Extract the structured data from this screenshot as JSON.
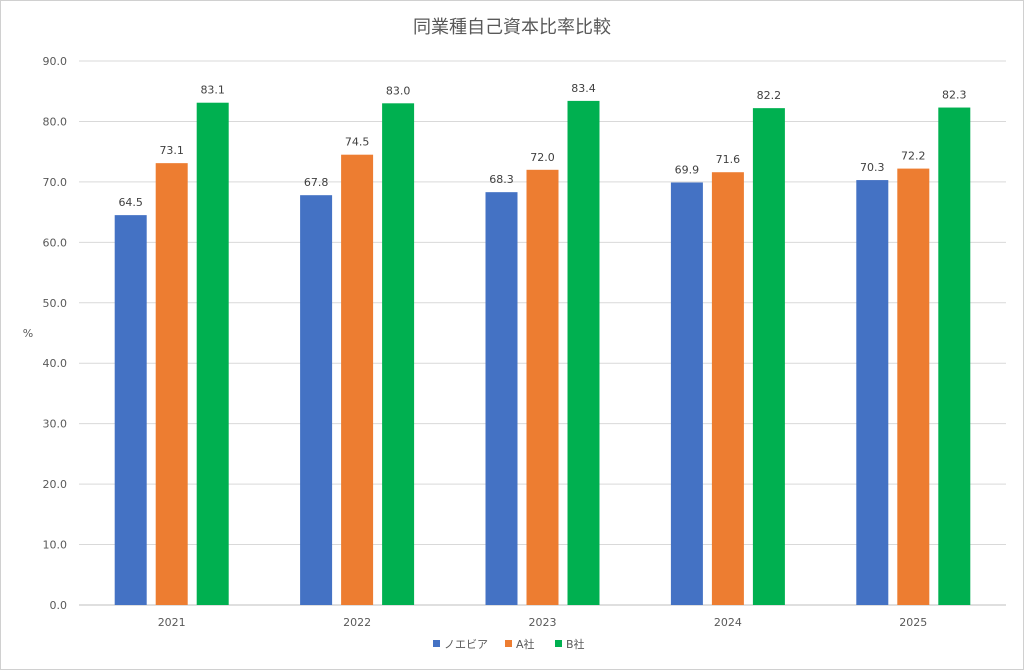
{
  "chart_data": {
    "type": "bar",
    "title": "同業種自己資本比率比較",
    "xlabel": "",
    "ylabel": "%",
    "categories": [
      "2021",
      "2022",
      "2023",
      "2024",
      "2025"
    ],
    "ylim": [
      0,
      90
    ],
    "ytick_step": 10,
    "ytick_labels": [
      "0.0",
      "10.0",
      "20.0",
      "30.0",
      "40.0",
      "50.0",
      "60.0",
      "70.0",
      "80.0",
      "90.0"
    ],
    "grid": true,
    "legend_position": "bottom",
    "series": [
      {
        "name": "ノエビア",
        "color": "#4472C4",
        "values": [
          64.5,
          67.8,
          68.3,
          69.9,
          70.3
        ],
        "labels": [
          "64.5",
          "67.8",
          "68.3",
          "69.9",
          "70.3"
        ]
      },
      {
        "name": "A社",
        "color": "#ED7D31",
        "values": [
          73.1,
          74.5,
          72.0,
          71.6,
          72.2
        ],
        "labels": [
          "73.1",
          "74.5",
          "72.0",
          "71.6",
          "72.2"
        ]
      },
      {
        "name": "B社",
        "color": "#00B050",
        "values": [
          83.1,
          83.0,
          83.4,
          82.2,
          82.3
        ],
        "labels": [
          "83.1",
          "83.0",
          "83.4",
          "82.2",
          "82.3"
        ]
      }
    ]
  }
}
